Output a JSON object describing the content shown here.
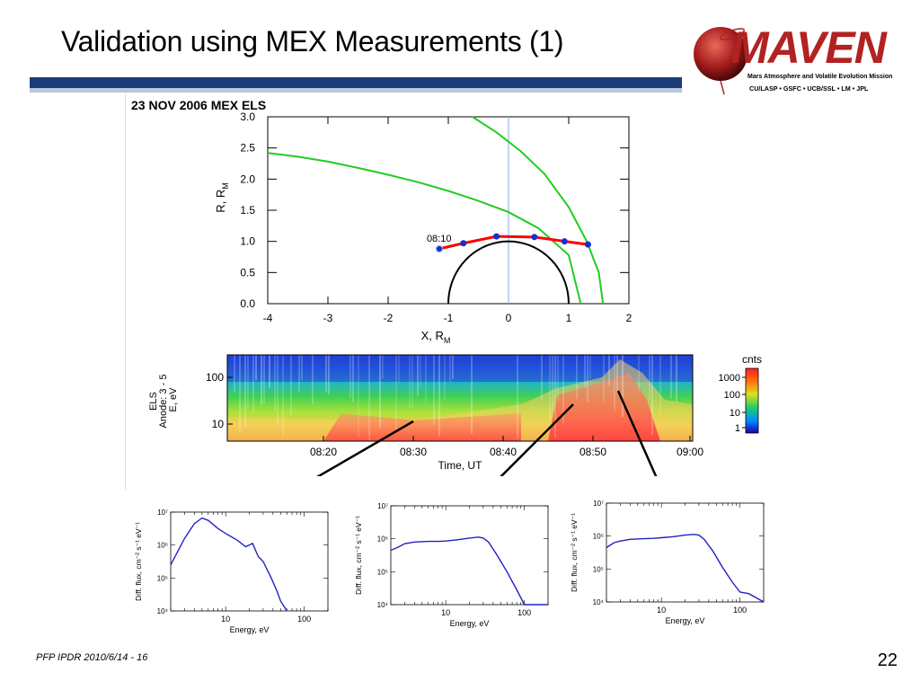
{
  "slide": {
    "title": "Validation using MEX Measurements (1)",
    "footer": "PFP IPDR 2010/6/14 - 16",
    "page_number": "22"
  },
  "logo": {
    "word": "MAVEN",
    "tagline": "Mars Atmosphere and Volatile Evolution Mission",
    "partners": "CU/LASP • GSFC • UCB/SSL • LM • JPL",
    "colors": {
      "red": "#b22222",
      "dark": "#6b0f0f"
    }
  },
  "chart_data": [
    {
      "type": "line",
      "title": "23 NOV 2006 MEX ELS",
      "xlabel": "X, R",
      "xlabel_sub": "M",
      "ylabel": "R, R",
      "ylabel_sub": "M",
      "xlim": [
        -4,
        2
      ],
      "ylim": [
        0,
        3
      ],
      "x_ticks": [
        "-4",
        "-3",
        "-2",
        "-1",
        "0",
        "1",
        "2"
      ],
      "y_ticks": [
        "0.0",
        "0.5",
        "1.0",
        "1.5",
        "2.0",
        "2.5",
        "3.0"
      ],
      "series": [
        {
          "color": "#22cc22",
          "x": [
            -4.0,
            -3.5,
            -3.0,
            -2.5,
            -2.0,
            -1.5,
            -1.0,
            -0.5,
            0.0,
            0.5,
            1.0,
            1.2
          ],
          "y": [
            2.42,
            2.36,
            2.28,
            2.18,
            2.07,
            1.95,
            1.81,
            1.65,
            1.47,
            1.21,
            0.78,
            0.0
          ]
        },
        {
          "color": "#22cc22",
          "x": [
            -0.6,
            -0.2,
            0.2,
            0.6,
            1.0,
            1.3,
            1.5,
            1.57
          ],
          "y": [
            3.0,
            2.75,
            2.45,
            2.08,
            1.55,
            1.0,
            0.5,
            0.0
          ]
        },
        {
          "color": "#ff0000",
          "x": [
            -1.15,
            -0.75,
            -0.2,
            0.43,
            0.93,
            1.32
          ],
          "y": [
            0.88,
            0.97,
            1.08,
            1.07,
            1.0,
            0.95
          ]
        }
      ],
      "orbit_point_x": [
        -1.15,
        -0.75,
        -0.2,
        0.43,
        0.93,
        1.32
      ],
      "orbit_point_y": [
        0.88,
        0.97,
        1.08,
        1.07,
        1.0,
        0.95
      ],
      "orbit_start_label": "08:10",
      "mars_radius": 1.0,
      "vertical_line_x": 0
    },
    {
      "type": "heatmap",
      "ylabel_lines": [
        "ELS",
        "Anode: 3 - 5",
        "E, eV"
      ],
      "xlabel": "Time, UT",
      "x_ticks": [
        "08:20",
        "08:30",
        "08:40",
        "08:50",
        "09:00"
      ],
      "y_ticks": [
        "100",
        "10"
      ],
      "colorbar_title": "cnts",
      "colorbar_ticks": [
        "1000",
        "100",
        "10",
        "1"
      ]
    },
    {
      "type": "line",
      "xlabel": "Energy, eV",
      "ylabel": "Diff. flux, cm⁻² s⁻¹ eV⁻¹",
      "x_scale": "log",
      "y_scale": "log",
      "x_ticks": [
        "10",
        "100"
      ],
      "y_ticks": [
        "10⁷",
        "10⁶",
        "10⁵",
        "10⁴"
      ],
      "x": [
        2,
        3,
        4,
        5,
        6,
        8,
        10,
        14,
        18,
        22,
        26,
        30,
        38,
        45,
        50,
        60
      ],
      "y": [
        5.4,
        6.2,
        6.65,
        6.82,
        6.75,
        6.5,
        6.35,
        6.15,
        5.95,
        6.05,
        5.65,
        5.5,
        5.0,
        4.6,
        4.3,
        4.0
      ]
    },
    {
      "type": "line",
      "xlabel": "Energy, eV",
      "ylabel": "Diff. flux, cm⁻² s⁻¹ eV⁻¹",
      "x_scale": "log",
      "y_scale": "log",
      "x_ticks": [
        "10",
        "100"
      ],
      "y_ticks": [
        "10⁷",
        "10⁶",
        "10⁵",
        "10⁴"
      ],
      "x": [
        2,
        2.5,
        3,
        4,
        6,
        8,
        10,
        14,
        20,
        26,
        30,
        35,
        45,
        60,
        80,
        100,
        200
      ],
      "y": [
        5.65,
        5.75,
        5.85,
        5.9,
        5.92,
        5.92,
        5.93,
        5.97,
        6.02,
        6.05,
        6.02,
        5.9,
        5.5,
        5.0,
        4.45,
        4.0,
        4.0
      ]
    },
    {
      "type": "line",
      "xlabel": "Energy, eV",
      "ylabel": "Diff. flux, cm⁻² s⁻¹ eV⁻¹",
      "x_scale": "log",
      "y_scale": "log",
      "x_ticks": [
        "10",
        "100"
      ],
      "y_ticks": [
        "10⁷",
        "10⁶",
        "10⁵",
        "10⁴"
      ],
      "x": [
        2,
        2.5,
        3,
        4,
        6,
        8,
        10,
        14,
        20,
        26,
        30,
        35,
        45,
        60,
        80,
        100,
        130,
        200
      ],
      "y": [
        5.65,
        5.8,
        5.85,
        5.9,
        5.92,
        5.93,
        5.95,
        5.98,
        6.03,
        6.05,
        6.03,
        5.9,
        5.55,
        5.05,
        4.6,
        4.3,
        4.25,
        4.0
      ]
    }
  ]
}
